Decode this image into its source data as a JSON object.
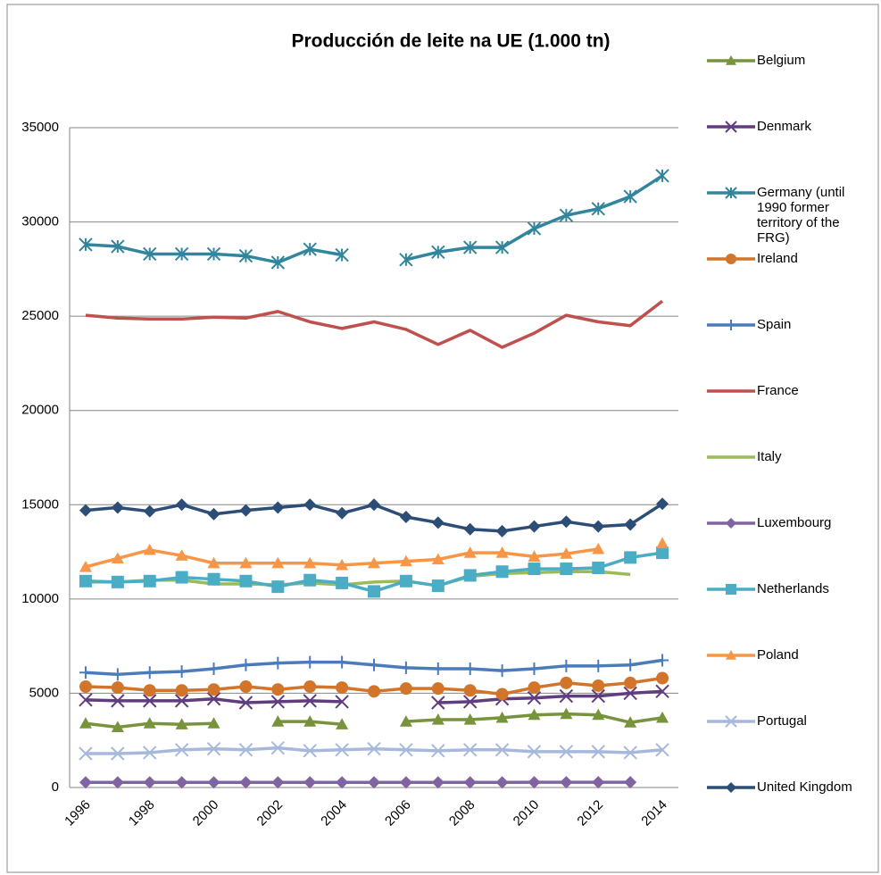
{
  "chart_data": {
    "type": "line",
    "title": "Producción de leite na UE (1.000 tn)",
    "categories": [
      "1996",
      null,
      "1998",
      null,
      "2000",
      null,
      "2002",
      null,
      "2004",
      null,
      "2006",
      null,
      "2008",
      null,
      "2010",
      null,
      "2012",
      null,
      "2014"
    ],
    "ylim": [
      0,
      35000
    ],
    "yticks": [
      0,
      5000,
      10000,
      15000,
      20000,
      25000,
      30000,
      35000
    ],
    "grid": true,
    "legend": "right",
    "series": [
      {
        "name": "Belgium",
        "color": "#77933c",
        "marker": "triangle",
        "values": [
          3400,
          3200,
          3400,
          3350,
          3400,
          null,
          3500,
          3500,
          3350,
          null,
          3500,
          3600,
          3600,
          3700,
          3850,
          3900,
          3850,
          3450,
          3700
        ]
      },
      {
        "name": "Denmark",
        "color": "#5f3d7f",
        "marker": "x",
        "values": [
          4650,
          4600,
          4600,
          4600,
          4700,
          4500,
          4550,
          4600,
          4550,
          null,
          null,
          4500,
          4550,
          4700,
          4750,
          4850,
          4850,
          5000,
          5100
        ]
      },
      {
        "name": "Germany (until 1990 former territory of the FRG)",
        "color": "#31859c",
        "marker": "star",
        "values": [
          28800,
          28700,
          28300,
          28300,
          28300,
          28200,
          27850,
          28550,
          28250,
          null,
          28000,
          28400,
          28650,
          28650,
          29650,
          30350,
          30700,
          31350,
          32450
        ]
      },
      {
        "name": "Ireland",
        "color": "#d2752b",
        "marker": "circle",
        "values": [
          5350,
          5300,
          5150,
          5150,
          5200,
          5350,
          5200,
          5350,
          5300,
          5100,
          5250,
          5250,
          5150,
          4950,
          5300,
          5550,
          5400,
          5550,
          5800
        ]
      },
      {
        "name": "Spain",
        "color": "#4a7bbb",
        "marker": "plus",
        "values": [
          6100,
          6000,
          6100,
          6150,
          6300,
          6500,
          6600,
          6650,
          6650,
          6500,
          6350,
          6300,
          6300,
          6200,
          6300,
          6450,
          6450,
          6500,
          6750
        ]
      },
      {
        "name": "France",
        "color": "#c0504d",
        "marker": "none",
        "values": [
          25050,
          24900,
          24850,
          24850,
          24950,
          24900,
          25250,
          24700,
          24350,
          24700,
          24300,
          23500,
          24250,
          23350,
          24100,
          25050,
          24700,
          24500,
          25800
        ]
      },
      {
        "name": "Italy",
        "color": "#9bbb59",
        "marker": "none",
        "values": [
          10900,
          10900,
          11000,
          11000,
          10800,
          10800,
          10750,
          10850,
          10750,
          10900,
          10950,
          10700,
          11200,
          11350,
          11400,
          11450,
          11450,
          11300,
          null
        ]
      },
      {
        "name": "Luxembourg",
        "color": "#8064a2",
        "marker": "diamond",
        "values": [
          270,
          270,
          270,
          270,
          270,
          270,
          270,
          270,
          270,
          270,
          270,
          270,
          270,
          270,
          280,
          280,
          280,
          280,
          null
        ]
      },
      {
        "name": "Netherlands",
        "color": "#4bacc6",
        "marker": "square",
        "values": [
          10950,
          10900,
          10950,
          11150,
          11050,
          10950,
          10650,
          11000,
          10850,
          10400,
          10950,
          10700,
          11250,
          11450,
          11600,
          11600,
          11650,
          12200,
          12450
        ]
      },
      {
        "name": "Poland",
        "color": "#f79646",
        "marker": "triangle",
        "values": [
          11700,
          12150,
          12600,
          12300,
          11900,
          11900,
          11900,
          11900,
          11800,
          11900,
          12000,
          12100,
          12450,
          12450,
          12250,
          12400,
          12650,
          null,
          12950
        ]
      },
      {
        "name": "Portugal",
        "color": "#a6b8db",
        "marker": "x",
        "values": [
          1800,
          1800,
          1850,
          2000,
          2050,
          2000,
          2100,
          1950,
          2000,
          2050,
          2000,
          1950,
          2000,
          2000,
          1900,
          1900,
          1900,
          1850,
          2000
        ]
      },
      {
        "name": "United Kingdom",
        "color": "#2c4d75",
        "marker": "diamond",
        "values": [
          14700,
          14850,
          14650,
          15000,
          14500,
          14700,
          14850,
          15000,
          14550,
          15000,
          14350,
          14050,
          13700,
          13600,
          13850,
          14100,
          13850,
          13950,
          15050
        ]
      }
    ]
  }
}
